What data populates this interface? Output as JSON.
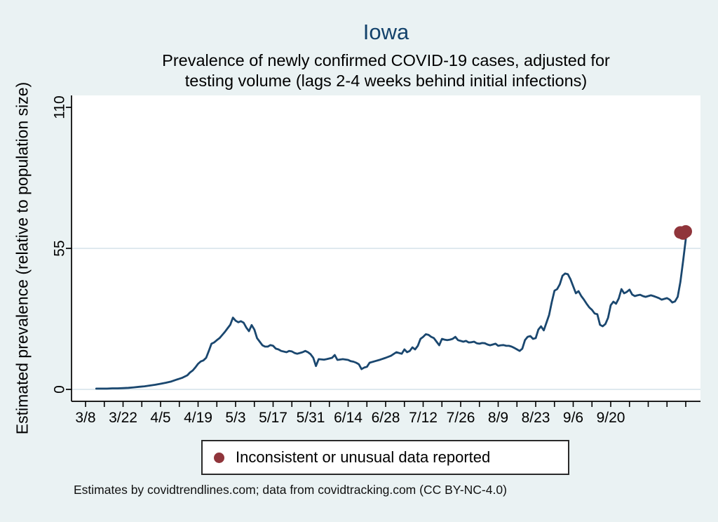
{
  "title": "Iowa",
  "subtitle_lines": [
    "Prevalence of newly confirmed COVID-19 cases, adjusted for",
    "testing volume (lags 2-4 weeks behind initial infections)"
  ],
  "footer": "Estimates by covidtrendlines.com; data from covidtracking.com (CC BY-NC-4.0)",
  "legend": {
    "label": "Inconsistent or unusual data reported",
    "marker_color": "#90353B"
  },
  "colors": {
    "background": "#eaf2f3",
    "plot_background": "#ffffff",
    "grid": "#dfe9ef",
    "axis": "#000000",
    "line": "#1A476F",
    "flagged_marker": "#90353B",
    "title_text": "#13426b",
    "label_text": "#000000"
  },
  "chart_data": {
    "type": "line",
    "title": "Iowa",
    "subtitle": "Prevalence of newly confirmed COVID-19 cases, adjusted for testing volume (lags 2-4 weeks behind initial infections)",
    "xlabel": "",
    "ylabel": "Estimated prevalence (relative to population size)",
    "ylim": [
      0,
      114
    ],
    "y_ticks": [
      0,
      55,
      110
    ],
    "gridline_values": [
      0,
      55
    ],
    "legend_position": "bottom",
    "x_label_ticks": [
      "3/8",
      "3/22",
      "4/5",
      "4/19",
      "5/3",
      "5/17",
      "5/31",
      "6/14",
      "6/28",
      "7/12",
      "7/26",
      "8/9",
      "8/23",
      "9/6",
      "9/20"
    ],
    "x_minor_tick_interval_days": 7,
    "x_minor_tick_start": "3/8",
    "x_minor_tick_end": "10/18",
    "series": [
      {
        "name": "Estimated prevalence",
        "color": "#1A476F",
        "points": [
          [
            "3/12",
            0.3
          ],
          [
            "3/14",
            0.3
          ],
          [
            "3/16",
            0.3
          ],
          [
            "3/18",
            0.4
          ],
          [
            "3/20",
            0.4
          ],
          [
            "3/22",
            0.5
          ],
          [
            "3/24",
            0.6
          ],
          [
            "3/26",
            0.8
          ],
          [
            "3/28",
            1.0
          ],
          [
            "3/30",
            1.2
          ],
          [
            "4/1",
            1.5
          ],
          [
            "4/3",
            1.8
          ],
          [
            "4/5",
            2.2
          ],
          [
            "4/7",
            2.6
          ],
          [
            "4/9",
            3.1
          ],
          [
            "4/11",
            3.8
          ],
          [
            "4/13",
            4.5
          ],
          [
            "4/15",
            5.5
          ],
          [
            "4/16",
            6.6
          ],
          [
            "4/17",
            7.4
          ],
          [
            "4/18",
            8.6
          ],
          [
            "4/19",
            10.0
          ],
          [
            "4/20",
            10.9
          ],
          [
            "4/21",
            11.3
          ],
          [
            "4/22",
            12.3
          ],
          [
            "4/23",
            15.0
          ],
          [
            "4/24",
            17.8
          ],
          [
            "4/25",
            18.3
          ],
          [
            "4/26",
            19.2
          ],
          [
            "4/27",
            20.0
          ],
          [
            "4/28",
            21.2
          ],
          [
            "4/29",
            22.4
          ],
          [
            "4/30",
            23.8
          ],
          [
            "5/1",
            25.2
          ],
          [
            "5/2",
            28.0
          ],
          [
            "5/3",
            26.8
          ],
          [
            "5/4",
            26.2
          ],
          [
            "5/5",
            26.6
          ],
          [
            "5/6",
            26.0
          ],
          [
            "5/7",
            24.1
          ],
          [
            "5/8",
            22.7
          ],
          [
            "5/9",
            25.1
          ],
          [
            "5/10",
            23.3
          ],
          [
            "5/11",
            20.0
          ],
          [
            "5/12",
            18.6
          ],
          [
            "5/13",
            17.2
          ],
          [
            "5/14",
            16.7
          ],
          [
            "5/15",
            16.7
          ],
          [
            "5/16",
            17.3
          ],
          [
            "5/17",
            17.0
          ],
          [
            "5/18",
            15.9
          ],
          [
            "5/19",
            15.6
          ],
          [
            "5/20",
            15.0
          ],
          [
            "5/22",
            14.5
          ],
          [
            "5/23",
            15.0
          ],
          [
            "5/24",
            14.8
          ],
          [
            "5/25",
            14.2
          ],
          [
            "5/26",
            13.9
          ],
          [
            "5/27",
            14.2
          ],
          [
            "5/28",
            14.5
          ],
          [
            "5/29",
            15.0
          ],
          [
            "5/30",
            14.5
          ],
          [
            "5/31",
            13.7
          ],
          [
            "6/1",
            12.3
          ],
          [
            "6/2",
            9.1
          ],
          [
            "6/3",
            11.8
          ],
          [
            "6/5",
            11.6
          ],
          [
            "6/6",
            11.8
          ],
          [
            "6/8",
            12.3
          ],
          [
            "6/9",
            13.4
          ],
          [
            "6/10",
            11.5
          ],
          [
            "6/12",
            11.8
          ],
          [
            "6/14",
            11.5
          ],
          [
            "6/15",
            11.0
          ],
          [
            "6/16",
            10.8
          ],
          [
            "6/17",
            10.4
          ],
          [
            "6/18",
            9.8
          ],
          [
            "6/19",
            7.9
          ],
          [
            "6/20",
            8.5
          ],
          [
            "6/21",
            8.8
          ],
          [
            "6/22",
            10.4
          ],
          [
            "6/24",
            11.0
          ],
          [
            "6/26",
            11.6
          ],
          [
            "6/28",
            12.3
          ],
          [
            "6/30",
            13.1
          ],
          [
            "7/2",
            14.5
          ],
          [
            "7/3",
            14.2
          ],
          [
            "7/4",
            13.9
          ],
          [
            "7/5",
            15.6
          ],
          [
            "7/6",
            14.5
          ],
          [
            "7/7",
            15.0
          ],
          [
            "7/8",
            16.4
          ],
          [
            "7/9",
            15.6
          ],
          [
            "7/10",
            17.0
          ],
          [
            "7/11",
            19.7
          ],
          [
            "7/12",
            20.5
          ],
          [
            "7/13",
            21.5
          ],
          [
            "7/14",
            21.3
          ],
          [
            "7/15",
            20.5
          ],
          [
            "7/16",
            20.0
          ],
          [
            "7/17",
            18.6
          ],
          [
            "7/18",
            17.2
          ],
          [
            "7/19",
            19.7
          ],
          [
            "7/20",
            19.4
          ],
          [
            "7/21",
            19.2
          ],
          [
            "7/22",
            19.4
          ],
          [
            "7/23",
            19.7
          ],
          [
            "7/24",
            20.5
          ],
          [
            "7/25",
            19.2
          ],
          [
            "7/26",
            18.9
          ],
          [
            "7/27",
            18.6
          ],
          [
            "7/28",
            18.9
          ],
          [
            "7/29",
            18.3
          ],
          [
            "7/30",
            18.4
          ],
          [
            "7/31",
            18.6
          ],
          [
            "8/1",
            18.0
          ],
          [
            "8/2",
            17.8
          ],
          [
            "8/3",
            18.1
          ],
          [
            "8/4",
            18.0
          ],
          [
            "8/5",
            17.5
          ],
          [
            "8/6",
            17.2
          ],
          [
            "8/7",
            17.5
          ],
          [
            "8/8",
            17.8
          ],
          [
            "8/9",
            17.0
          ],
          [
            "8/10",
            17.2
          ],
          [
            "8/11",
            17.3
          ],
          [
            "8/12",
            17.0
          ],
          [
            "8/13",
            17.0
          ],
          [
            "8/14",
            16.7
          ],
          [
            "8/15",
            16.2
          ],
          [
            "8/16",
            15.6
          ],
          [
            "8/17",
            15.0
          ],
          [
            "8/18",
            15.9
          ],
          [
            "8/19",
            19.2
          ],
          [
            "8/20",
            20.5
          ],
          [
            "8/21",
            20.8
          ],
          [
            "8/22",
            19.7
          ],
          [
            "8/23",
            20.0
          ],
          [
            "8/24",
            23.3
          ],
          [
            "8/25",
            24.6
          ],
          [
            "8/26",
            23.0
          ],
          [
            "8/27",
            26.0
          ],
          [
            "8/28",
            29.0
          ],
          [
            "8/29",
            34.0
          ],
          [
            "8/30",
            38.5
          ],
          [
            "8/31",
            39.1
          ],
          [
            "9/1",
            41.0
          ],
          [
            "9/2",
            44.3
          ],
          [
            "9/3",
            45.2
          ],
          [
            "9/4",
            44.9
          ],
          [
            "9/5",
            42.9
          ],
          [
            "9/6",
            40.2
          ],
          [
            "9/7",
            37.5
          ],
          [
            "9/8",
            38.3
          ],
          [
            "9/9",
            36.4
          ],
          [
            "9/10",
            35.0
          ],
          [
            "9/11",
            33.4
          ],
          [
            "9/12",
            32.0
          ],
          [
            "9/13",
            31.0
          ],
          [
            "9/14",
            29.6
          ],
          [
            "9/15",
            29.3
          ],
          [
            "9/16",
            25.2
          ],
          [
            "9/17",
            24.6
          ],
          [
            "9/18",
            25.5
          ],
          [
            "9/19",
            27.9
          ],
          [
            "9/20",
            32.8
          ],
          [
            "9/21",
            34.2
          ],
          [
            "9/22",
            33.4
          ],
          [
            "9/23",
            35.5
          ],
          [
            "9/24",
            39.1
          ],
          [
            "9/25",
            37.5
          ],
          [
            "9/26",
            38.0
          ],
          [
            "9/27",
            38.9
          ],
          [
            "9/28",
            37.0
          ],
          [
            "9/29",
            36.4
          ],
          [
            "9/30",
            36.7
          ],
          [
            "10/1",
            36.9
          ],
          [
            "10/2",
            36.4
          ],
          [
            "10/3",
            36.1
          ],
          [
            "10/4",
            36.4
          ],
          [
            "10/5",
            36.7
          ],
          [
            "10/6",
            36.4
          ],
          [
            "10/7",
            36.0
          ],
          [
            "10/8",
            35.6
          ],
          [
            "10/9",
            35.0
          ],
          [
            "10/10",
            35.3
          ],
          [
            "10/11",
            35.6
          ],
          [
            "10/12",
            35.0
          ],
          [
            "10/13",
            33.9
          ],
          [
            "10/14",
            34.3
          ],
          [
            "10/15",
            36.1
          ],
          [
            "10/16",
            42.0
          ],
          [
            "10/17",
            50.0
          ],
          [
            "10/18",
            58.5
          ]
        ]
      }
    ],
    "flagged_points": {
      "label": "Inconsistent or unusual data reported",
      "color": "#90353B",
      "points": [
        [
          "10/16",
          61.2
        ],
        [
          "10/17",
          60.8
        ],
        [
          "10/18",
          61.6
        ]
      ]
    }
  }
}
